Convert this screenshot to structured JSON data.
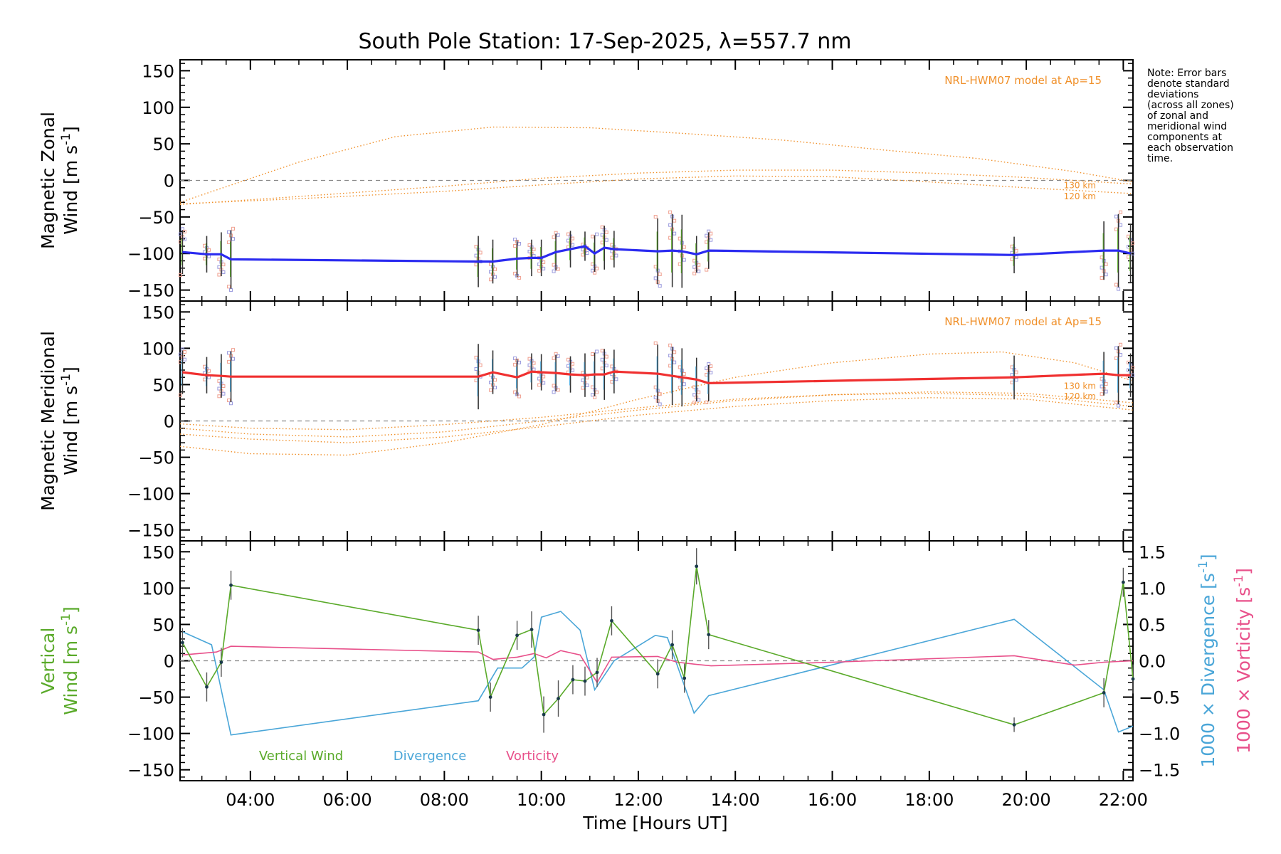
{
  "title": "South Pole Station: 17-Sep-2025, λ=557.7 nm",
  "note_lines": [
    "Note: Error bars",
    "denote standard",
    "deviations",
    "(across all zones)",
    "of zonal and",
    "meridional wind",
    "components at",
    "each observation",
    "time."
  ],
  "colors": {
    "zonal": "#2b2bf0",
    "meridional": "#f03030",
    "vertical": "#5aaa2a",
    "divergence": "#4aa6d8",
    "vorticity": "#e8508a",
    "model": "#f0902a",
    "zero_line": "#888888",
    "error_bar": "#333333",
    "scatter": "#9999dd",
    "scatter2": "#f0a090"
  },
  "chart_data": [
    {
      "type": "line",
      "id": "zonal",
      "ylabel_line1": "Magnetic Zonal",
      "ylabel_line2": "Wind [m s",
      "ylabel_sup": "-1",
      "ylabel_close": "]",
      "ylim": [
        -165,
        165
      ],
      "yticks": [
        150,
        100,
        50,
        0,
        -50,
        -100,
        -150
      ],
      "xlim": [
        2.55,
        22.2
      ],
      "model_label": "NRL-HWM07 model at Ap=15",
      "alt_labels": [
        "130 km",
        "120 km"
      ],
      "times": [
        2.6,
        3.1,
        3.4,
        3.6,
        8.7,
        9.0,
        9.5,
        9.8,
        10.0,
        10.3,
        10.6,
        10.9,
        11.1,
        11.3,
        11.5,
        12.4,
        12.7,
        12.9,
        13.2,
        13.45,
        19.75,
        21.6,
        21.9,
        22.15
      ],
      "values": [
        -98,
        -101,
        -101,
        -108,
        -111,
        -111,
        -107,
        -106,
        -106,
        -98,
        -94,
        -90,
        -100,
        -92,
        -94,
        -97,
        -96,
        -97,
        -101,
        -96,
        -102,
        -96,
        -96,
        -100
      ],
      "errors": [
        30,
        25,
        30,
        40,
        35,
        30,
        25,
        25,
        25,
        25,
        25,
        20,
        25,
        30,
        25,
        45,
        50,
        50,
        25,
        25,
        25,
        40,
        50,
        40
      ],
      "model_curves": [
        {
          "name": "peak",
          "x": [
            2.55,
            5,
            7,
            9,
            11,
            13,
            15,
            17,
            19,
            21,
            22.2
          ],
          "y": [
            -30,
            25,
            60,
            73,
            72,
            64,
            55,
            42,
            30,
            12,
            -2
          ]
        },
        {
          "name": "130 km",
          "x": [
            2.55,
            5,
            8,
            10,
            12,
            14,
            16,
            18,
            20,
            22.2
          ],
          "y": [
            -33,
            -22,
            -8,
            3,
            10,
            14,
            14,
            10,
            4,
            -5
          ]
        },
        {
          "name": "120 km",
          "x": [
            2.55,
            5,
            8,
            10,
            12,
            14,
            16,
            18,
            20,
            22.2
          ],
          "y": [
            -32,
            -25,
            -15,
            -6,
            2,
            6,
            5,
            -2,
            -10,
            -18
          ]
        }
      ]
    },
    {
      "type": "line",
      "id": "meridional",
      "ylabel_line1": "Magnetic Meridional",
      "ylabel_line2": "Wind [m s",
      "ylabel_sup": "-1",
      "ylabel_close": "]",
      "ylim": [
        -165,
        165
      ],
      "yticks": [
        150,
        100,
        50,
        0,
        -50,
        -100,
        -150
      ],
      "xlim": [
        2.55,
        22.2
      ],
      "model_label": "NRL-HWM07 model at Ap=15",
      "alt_labels": [
        "130 km",
        "120 km"
      ],
      "times": [
        2.6,
        3.1,
        3.4,
        3.6,
        8.7,
        9.0,
        9.5,
        9.8,
        10.0,
        10.3,
        10.6,
        10.9,
        11.1,
        11.3,
        11.5,
        12.4,
        12.7,
        12.9,
        13.2,
        13.45,
        19.75,
        21.6,
        21.9,
        22.15
      ],
      "values": [
        67,
        63,
        62,
        61,
        61,
        67,
        60,
        68,
        67,
        66,
        64,
        63,
        64,
        64,
        68,
        65,
        62,
        60,
        57,
        52,
        60,
        65,
        63,
        63
      ],
      "errors": [
        30,
        25,
        30,
        35,
        45,
        30,
        25,
        25,
        25,
        25,
        25,
        30,
        30,
        35,
        30,
        40,
        40,
        40,
        30,
        25,
        30,
        30,
        40,
        30
      ],
      "model_curves": [
        {
          "name": "peak",
          "x": [
            2.55,
            4,
            6,
            8,
            10,
            12,
            14,
            16,
            18,
            19.5,
            21,
            22.2
          ],
          "y": [
            -35,
            -45,
            -47,
            -30,
            -5,
            30,
            60,
            80,
            92,
            95,
            80,
            55
          ]
        },
        {
          "name": "130 km",
          "x": [
            2.55,
            4,
            6,
            8,
            10,
            12,
            14,
            16,
            18,
            20,
            22.2
          ],
          "y": [
            -10,
            -18,
            -22,
            -15,
            0,
            15,
            28,
            36,
            40,
            38,
            25
          ]
        },
        {
          "name": "120 km",
          "x": [
            2.55,
            4,
            6,
            8,
            10,
            12,
            14,
            16,
            18,
            20,
            22.2
          ],
          "y": [
            -18,
            -25,
            -30,
            -22,
            -8,
            8,
            20,
            28,
            32,
            30,
            15
          ]
        },
        {
          "name": "low",
          "x": [
            2.55,
            4,
            6,
            8,
            10,
            12,
            14,
            16,
            18,
            20,
            22.2
          ],
          "y": [
            -4,
            -10,
            -12,
            -5,
            5,
            18,
            30,
            36,
            38,
            35,
            20
          ]
        }
      ]
    },
    {
      "type": "line",
      "id": "vertical",
      "ylabel_line1": "Vertical",
      "ylabel_line2": "Wind [m s",
      "ylabel_sup": "-1",
      "ylabel_close": "]",
      "ylim": [
        -165,
        165
      ],
      "yticks": [
        150,
        100,
        50,
        0,
        -50,
        -100,
        -150
      ],
      "y2lim": [
        -1.65,
        1.65
      ],
      "y2ticks": [
        1.5,
        1.0,
        0.5,
        0.0,
        -0.5,
        -1.0,
        -1.5
      ],
      "y2ticklabels": [
        "1.5",
        "1.0",
        "0.5",
        "0.0",
        "−0.5",
        "−1.0",
        "−1.5"
      ],
      "y2label_div": "1000 × Divergence [s",
      "y2label_vor": "1000 × Vorticity [s",
      "y2label_sup": "-1",
      "y2label_close": "]",
      "xlim": [
        2.55,
        22.2
      ],
      "xticks": [
        4,
        6,
        8,
        10,
        12,
        14,
        16,
        18,
        20,
        22
      ],
      "xticklabels": [
        "04:00",
        "06:00",
        "08:00",
        "10:00",
        "12:00",
        "14:00",
        "16:00",
        "18:00",
        "20:00",
        "22:00"
      ],
      "xlabel": "Time [Hours UT]",
      "legend": [
        "Vertical Wind",
        "Divergence",
        "Vorticity"
      ],
      "vertical": {
        "times": [
          2.6,
          3.1,
          3.4,
          3.6,
          8.7,
          8.95,
          9.5,
          9.8,
          10.05,
          10.35,
          10.65,
          10.9,
          11.15,
          11.45,
          12.4,
          12.7,
          12.95,
          13.2,
          13.45,
          19.75,
          21.6,
          22.0,
          22.2
        ],
        "values": [
          25,
          -36,
          -2,
          104,
          42,
          -50,
          35,
          43,
          -74,
          -52,
          -26,
          -28,
          -16,
          55,
          -18,
          22,
          -24,
          130,
          36,
          -88,
          -44,
          108,
          -25
        ],
        "errors": [
          20,
          20,
          20,
          20,
          20,
          20,
          20,
          25,
          25,
          25,
          20,
          20,
          20,
          20,
          20,
          20,
          20,
          25,
          20,
          10,
          20,
          20,
          20
        ]
      },
      "divergence": {
        "times": [
          2.6,
          3.2,
          3.6,
          8.7,
          9.1,
          9.6,
          9.85,
          10.0,
          10.4,
          10.8,
          11.1,
          11.5,
          12.35,
          12.6,
          13.15,
          13.45,
          19.75,
          21.6,
          21.9,
          22.2
        ],
        "values": [
          0.4,
          0.22,
          -1.02,
          -0.55,
          -0.1,
          -0.1,
          0.05,
          0.6,
          0.68,
          0.42,
          -0.4,
          0.0,
          0.35,
          0.32,
          -0.72,
          -0.48,
          0.57,
          -0.4,
          -0.98,
          -0.9
        ]
      },
      "vorticity": {
        "times": [
          2.6,
          3.3,
          3.6,
          8.7,
          9.0,
          9.5,
          9.85,
          10.1,
          10.4,
          10.8,
          11.15,
          11.45,
          12.4,
          12.8,
          13.2,
          13.5,
          16,
          19.75,
          21.0,
          21.6,
          22.2
        ],
        "values": [
          0.08,
          0.12,
          0.2,
          0.12,
          0.02,
          0.05,
          0.1,
          0.04,
          0.14,
          0.08,
          -0.3,
          0.05,
          0.06,
          -0.02,
          -0.05,
          -0.07,
          -0.02,
          0.07,
          -0.06,
          -0.02,
          0.0
        ]
      }
    }
  ]
}
